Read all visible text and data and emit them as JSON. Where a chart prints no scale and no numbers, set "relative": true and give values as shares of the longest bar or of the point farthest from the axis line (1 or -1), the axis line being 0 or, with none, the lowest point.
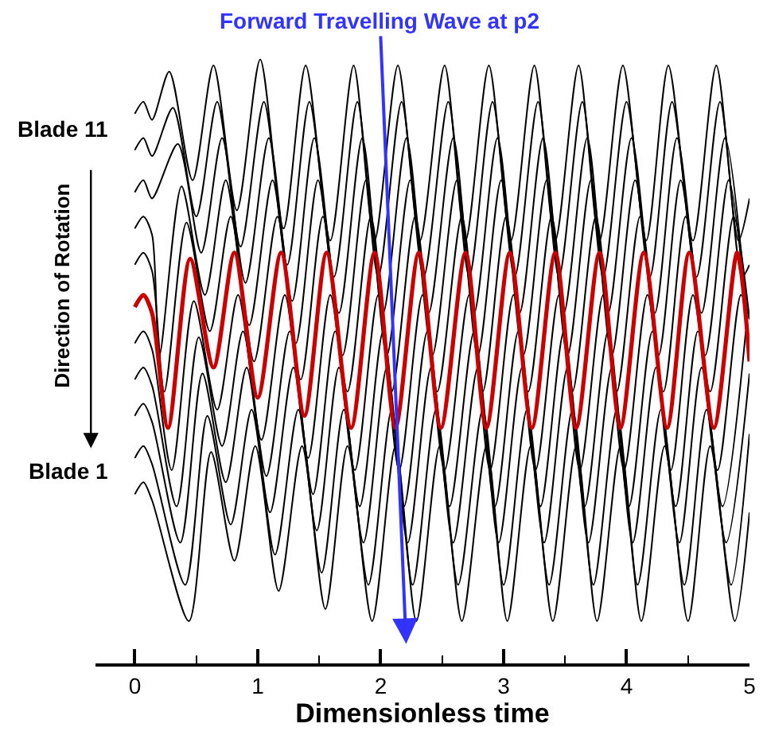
{
  "chart_data": {
    "type": "line",
    "relative": true,
    "xlabel": "Dimensionless time",
    "ylabel": "Direction of Rotation",
    "xlim": [
      -0.32,
      5
    ],
    "xticks": [
      0,
      {
        "value": 0.5,
        "label": null
      },
      1,
      {
        "value": 1.5,
        "label": null
      },
      2,
      {
        "value": 2.5,
        "label": null
      },
      3,
      {
        "value": 3.5,
        "label": null
      },
      4,
      {
        "value": 4.5,
        "label": null
      },
      5
    ],
    "marker": "none",
    "line_style": "solid",
    "tick_labels": "x",
    "annotations": [
      "Forward Travelling Wave at p2",
      "Blade 11",
      "Blade 1"
    ],
    "series": [
      {
        "color": "#000000",
        "x": [
          0,
          0.07,
          0.14,
          0.28,
          0.47,
          0.64,
          0.83,
          1.02,
          1.21,
          1.39,
          1.59,
          1.78,
          1.95,
          2.14,
          2.32,
          2.52,
          2.69,
          2.88,
          3.06,
          3.25,
          3.42,
          3.61,
          3.78,
          3.97,
          4.16,
          4.34,
          4.54,
          4.73,
          4.91,
          5.0
        ],
        "values": [
          0.91,
          0.93,
          0.9,
          0.98,
          0.8,
          0.99,
          0.75,
          1.0,
          0.72,
          0.99,
          0.7,
          0.99,
          0.7,
          0.99,
          0.7,
          0.99,
          0.7,
          0.99,
          0.7,
          0.99,
          0.7,
          0.99,
          0.7,
          0.99,
          0.7,
          0.99,
          0.7,
          0.99,
          0.7,
          0.77
        ]
      },
      {
        "color": "#000000",
        "x": [
          0,
          0.07,
          0.14,
          0.31,
          0.5,
          0.67,
          0.86,
          1.05,
          1.24,
          1.42,
          1.62,
          1.81,
          1.98,
          2.17,
          2.35,
          2.55,
          2.72,
          2.91,
          3.09,
          3.28,
          3.45,
          3.64,
          3.81,
          4.0,
          4.19,
          4.37,
          4.57,
          4.76,
          4.94,
          5.0
        ],
        "values": [
          0.85,
          0.87,
          0.84,
          0.92,
          0.74,
          0.93,
          0.69,
          0.93,
          0.66,
          0.93,
          0.64,
          0.93,
          0.64,
          0.93,
          0.64,
          0.93,
          0.64,
          0.93,
          0.64,
          0.93,
          0.64,
          0.93,
          0.64,
          0.93,
          0.64,
          0.93,
          0.64,
          0.93,
          0.64,
          0.66
        ]
      },
      {
        "color": "#000000",
        "x": [
          0,
          0.07,
          0.14,
          0.35,
          0.54,
          0.71,
          0.9,
          1.09,
          1.28,
          1.46,
          1.66,
          1.85,
          2.02,
          2.21,
          2.39,
          2.59,
          2.76,
          2.95,
          3.13,
          3.32,
          3.49,
          3.68,
          3.85,
          4.04,
          4.23,
          4.41,
          4.61,
          4.8,
          4.98
        ],
        "values": [
          0.78,
          0.8,
          0.77,
          0.86,
          0.68,
          0.87,
          0.63,
          0.87,
          0.6,
          0.87,
          0.58,
          0.87,
          0.58,
          0.87,
          0.58,
          0.87,
          0.58,
          0.87,
          0.58,
          0.87,
          0.58,
          0.87,
          0.58,
          0.87,
          0.58,
          0.87,
          0.58,
          0.87,
          0.58
        ]
      },
      {
        "color": "#000000",
        "x": [
          0,
          0.07,
          0.14,
          0.2,
          0.38,
          0.57,
          0.74,
          0.93,
          1.12,
          1.31,
          1.49,
          1.69,
          1.88,
          2.05,
          2.24,
          2.42,
          2.62,
          2.79,
          2.98,
          3.16,
          3.35,
          3.52,
          3.71,
          3.88,
          4.07,
          4.26,
          4.44,
          4.64,
          4.83,
          5.0
        ],
        "values": [
          0.72,
          0.74,
          0.71,
          0.51,
          0.79,
          0.61,
          0.8,
          0.56,
          0.8,
          0.53,
          0.8,
          0.51,
          0.8,
          0.51,
          0.8,
          0.51,
          0.8,
          0.51,
          0.8,
          0.51,
          0.8,
          0.51,
          0.8,
          0.51,
          0.8,
          0.51,
          0.8,
          0.51,
          0.8,
          0.52
        ]
      },
      {
        "color": "#000000",
        "x": [
          0,
          0.07,
          0.14,
          0.24,
          0.42,
          0.61,
          0.78,
          0.97,
          1.16,
          1.35,
          1.53,
          1.73,
          1.92,
          2.09,
          2.28,
          2.46,
          2.66,
          2.83,
          3.02,
          3.2,
          3.39,
          3.56,
          3.75,
          3.92,
          4.11,
          4.3,
          4.48,
          4.68,
          4.87,
          5.0
        ],
        "values": [
          0.66,
          0.68,
          0.65,
          0.45,
          0.73,
          0.55,
          0.74,
          0.5,
          0.74,
          0.47,
          0.74,
          0.45,
          0.74,
          0.45,
          0.74,
          0.45,
          0.74,
          0.45,
          0.74,
          0.45,
          0.74,
          0.45,
          0.74,
          0.45,
          0.74,
          0.45,
          0.74,
          0.45,
          0.74,
          0.57
        ]
      },
      {
        "color": "#cc0000",
        "x": [
          0,
          0.07,
          0.14,
          0.27,
          0.45,
          0.64,
          0.81,
          1.0,
          1.19,
          1.38,
          1.56,
          1.76,
          1.95,
          2.12,
          2.31,
          2.49,
          2.69,
          2.86,
          3.05,
          3.23,
          3.42,
          3.59,
          3.78,
          3.95,
          4.14,
          4.33,
          4.51,
          4.71,
          4.9,
          5.0
        ],
        "values": [
          0.59,
          0.61,
          0.58,
          0.39,
          0.67,
          0.49,
          0.68,
          0.44,
          0.68,
          0.41,
          0.68,
          0.39,
          0.68,
          0.39,
          0.68,
          0.39,
          0.68,
          0.39,
          0.68,
          0.39,
          0.68,
          0.39,
          0.68,
          0.39,
          0.68,
          0.39,
          0.68,
          0.39,
          0.68,
          0.5
        ]
      },
      {
        "color": "#000000",
        "x": [
          0,
          0.07,
          0.14,
          0.3,
          0.48,
          0.67,
          0.84,
          1.03,
          1.22,
          1.41,
          1.59,
          1.79,
          1.98,
          2.15,
          2.34,
          2.52,
          2.72,
          2.89,
          3.08,
          3.26,
          3.45,
          3.62,
          3.81,
          3.98,
          4.17,
          4.36,
          4.54,
          4.74,
          4.93,
          5.0
        ],
        "values": [
          0.53,
          0.55,
          0.52,
          0.32,
          0.6,
          0.42,
          0.61,
          0.37,
          0.61,
          0.34,
          0.61,
          0.32,
          0.61,
          0.32,
          0.61,
          0.32,
          0.61,
          0.32,
          0.61,
          0.32,
          0.61,
          0.32,
          0.61,
          0.32,
          0.61,
          0.32,
          0.61,
          0.32,
          0.61,
          0.57
        ]
      },
      {
        "color": "#000000",
        "x": [
          0,
          0.07,
          0.14,
          0.34,
          0.52,
          0.71,
          0.88,
          1.07,
          1.26,
          1.45,
          1.63,
          1.83,
          2.02,
          2.19,
          2.38,
          2.56,
          2.76,
          2.93,
          3.12,
          3.3,
          3.49,
          3.66,
          3.85,
          4.02,
          4.21,
          4.4,
          4.58,
          4.78,
          4.97
        ],
        "values": [
          0.47,
          0.49,
          0.46,
          0.26,
          0.54,
          0.36,
          0.55,
          0.31,
          0.55,
          0.28,
          0.55,
          0.26,
          0.55,
          0.26,
          0.55,
          0.26,
          0.55,
          0.26,
          0.55,
          0.26,
          0.55,
          0.26,
          0.55,
          0.26,
          0.55,
          0.26,
          0.55,
          0.26,
          0.55
        ]
      },
      {
        "color": "#000000",
        "x": [
          0,
          0.07,
          0.14,
          0.37,
          0.55,
          0.74,
          0.91,
          1.1,
          1.29,
          1.48,
          1.66,
          1.86,
          2.05,
          2.22,
          2.41,
          2.59,
          2.79,
          2.96,
          3.15,
          3.33,
          3.52,
          3.69,
          3.88,
          4.05,
          4.24,
          4.43,
          4.61,
          4.81,
          5.0
        ],
        "values": [
          0.41,
          0.43,
          0.4,
          0.2,
          0.48,
          0.3,
          0.49,
          0.25,
          0.49,
          0.22,
          0.49,
          0.2,
          0.49,
          0.2,
          0.49,
          0.2,
          0.49,
          0.2,
          0.49,
          0.2,
          0.49,
          0.2,
          0.49,
          0.2,
          0.49,
          0.2,
          0.49,
          0.2,
          0.48
        ]
      },
      {
        "color": "#000000",
        "x": [
          0,
          0.07,
          0.14,
          0.41,
          0.59,
          0.78,
          0.95,
          1.14,
          1.33,
          1.52,
          1.7,
          1.9,
          2.09,
          2.26,
          2.45,
          2.63,
          2.83,
          3.0,
          3.19,
          3.37,
          3.56,
          3.73,
          3.92,
          4.09,
          4.28,
          4.47,
          4.65,
          4.85,
          5.0
        ],
        "values": [
          0.34,
          0.36,
          0.33,
          0.13,
          0.41,
          0.23,
          0.42,
          0.18,
          0.42,
          0.15,
          0.42,
          0.13,
          0.42,
          0.13,
          0.42,
          0.13,
          0.42,
          0.13,
          0.42,
          0.13,
          0.42,
          0.13,
          0.42,
          0.13,
          0.42,
          0.13,
          0.42,
          0.13,
          0.38
        ]
      },
      {
        "color": "#000000",
        "x": [
          0,
          0.07,
          0.14,
          0.44,
          0.62,
          0.81,
          0.98,
          1.17,
          1.36,
          1.55,
          1.73,
          1.93,
          2.12,
          2.29,
          2.48,
          2.66,
          2.86,
          3.03,
          3.22,
          3.4,
          3.59,
          3.76,
          3.95,
          4.12,
          4.31,
          4.5,
          4.68,
          4.88,
          5.0
        ],
        "values": [
          0.28,
          0.3,
          0.27,
          0.07,
          0.35,
          0.17,
          0.36,
          0.12,
          0.36,
          0.09,
          0.36,
          0.07,
          0.36,
          0.07,
          0.36,
          0.07,
          0.36,
          0.07,
          0.36,
          0.07,
          0.36,
          0.07,
          0.36,
          0.07,
          0.36,
          0.07,
          0.36,
          0.07,
          0.25
        ]
      }
    ]
  }
}
